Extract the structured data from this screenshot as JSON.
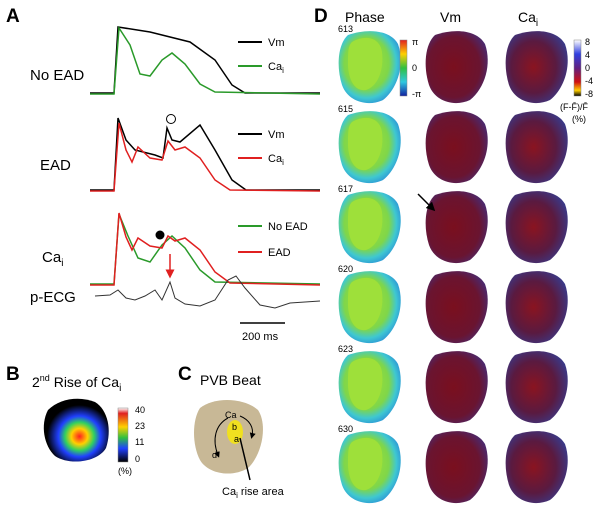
{
  "panel_a": {
    "label": "A",
    "rows": [
      {
        "label": "No EAD",
        "legend": [
          {
            "main": "Vm"
          },
          {
            "main": "Ca",
            "sub": "i"
          }
        ]
      },
      {
        "label": "EAD",
        "legend": [
          {
            "main": "Vm"
          },
          {
            "main": "Ca",
            "sub": "i"
          }
        ]
      },
      {
        "label": {
          "main": "Ca",
          "sub": "i"
        },
        "legend": [
          {
            "main": "No EAD"
          },
          {
            "main": "EAD"
          }
        ]
      },
      {
        "label": "p-ECG"
      }
    ],
    "scale_bar": "200 ms"
  },
  "panel_b": {
    "label": "B",
    "title": {
      "pre": "2",
      "sup": "nd",
      "post": " Rise of Ca",
      "sub": "i"
    },
    "colorbar": [
      "40",
      "23",
      "11",
      "0"
    ],
    "unit": "(%)"
  },
  "panel_c": {
    "label": "C",
    "title": "PVB Beat",
    "marks": [
      "Ca",
      "b",
      "a",
      "d"
    ],
    "note": {
      "main": "Ca",
      "sub": "i",
      "post": " rise area"
    }
  },
  "panel_d": {
    "label": "D",
    "columns": [
      "Phase",
      "Vm",
      {
        "main": "Ca",
        "sub": "i"
      }
    ],
    "frames": [
      "613",
      "615",
      "617",
      "620",
      "623",
      "630"
    ],
    "phase_colorbar": [
      "π",
      "0",
      "-π"
    ],
    "ca_colorbar": [
      "8",
      "4",
      "0",
      "-4",
      "-8"
    ],
    "ca_unit": [
      "(F-F̄)/F̄",
      "(%)"
    ]
  }
}
